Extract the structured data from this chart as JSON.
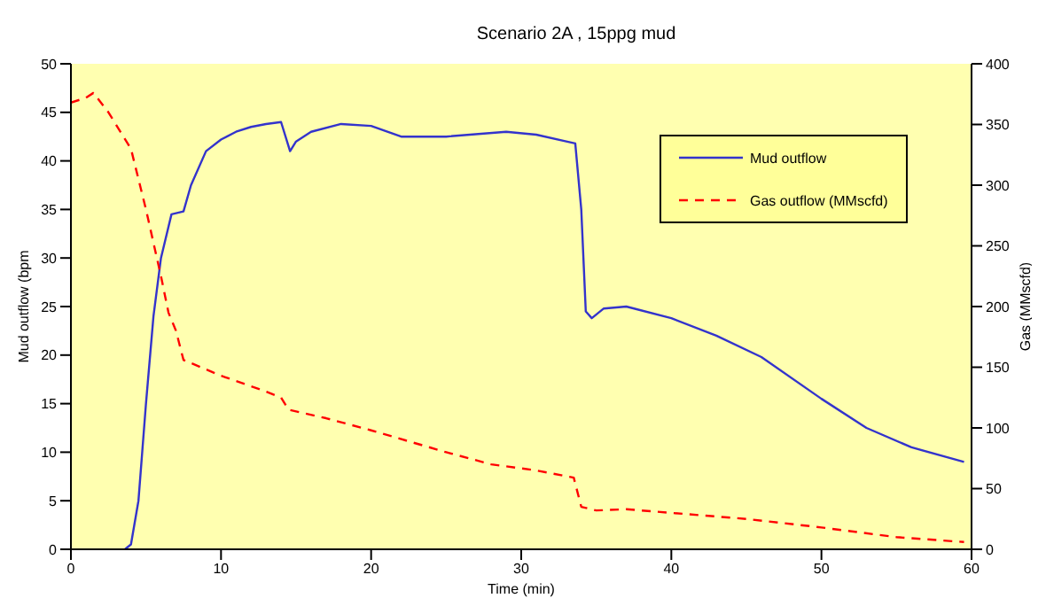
{
  "chart_data": {
    "type": "line",
    "title": "Scenario 2A , 15ppg mud",
    "xlabel": "Time (min)",
    "ylabel": "Mud outflow (bpm",
    "y2label": "Gas (MMscfd)",
    "xlim": [
      0,
      60
    ],
    "xticks": [
      0,
      10,
      20,
      30,
      40,
      50,
      60
    ],
    "ylim": [
      0,
      50
    ],
    "yticks": [
      0,
      5,
      10,
      15,
      20,
      25,
      30,
      35,
      40,
      45,
      50
    ],
    "y2lim": [
      0,
      400
    ],
    "y2ticks": [
      0,
      50,
      100,
      150,
      200,
      250,
      300,
      350,
      400
    ],
    "grid": false,
    "legend": "top right",
    "marker": "none",
    "series": [
      {
        "name": "Mud outflow",
        "color": "#3333cc",
        "line_style": "solid",
        "x": [
          3.6,
          4,
          4.5,
          5,
          5.5,
          6,
          6.7,
          7.5,
          8,
          9,
          10,
          11,
          12,
          13,
          14,
          14.6,
          15,
          16,
          18,
          20,
          22,
          25,
          29,
          31,
          33,
          33.6,
          34,
          34.3,
          34.7,
          35.5,
          37,
          40,
          43,
          46,
          50,
          53,
          56,
          59.5
        ],
        "values": [
          0,
          0.5,
          5,
          15,
          24,
          30,
          34.5,
          34.8,
          37.5,
          41,
          42.2,
          43,
          43.5,
          43.8,
          44,
          41,
          42,
          43,
          43.8,
          43.6,
          42.5,
          42.5,
          43,
          42.7,
          42,
          41.8,
          35,
          24.5,
          23.8,
          24.8,
          25,
          23.8,
          22,
          19.8,
          15.5,
          12.5,
          10.5,
          9
        ]
      },
      {
        "name": "Gas outflow (MMscfd)",
        "color": "#ff0000",
        "axis": "y2",
        "line_style": "dashed",
        "x": [
          0,
          1,
          1.5,
          2.5,
          3.5,
          4,
          5,
          6,
          6.5,
          7,
          7.5,
          10,
          13,
          14,
          14.5,
          17,
          20,
          25,
          28,
          31,
          33.5,
          34,
          35,
          37,
          40,
          45,
          50,
          55,
          59.5
        ],
        "values": [
          368,
          372,
          376,
          360,
          340,
          330,
          280,
          225,
          195,
          180,
          156,
          143,
          130,
          125,
          115,
          108,
          98,
          80,
          70,
          65,
          59,
          35,
          32,
          33,
          30,
          25,
          18,
          10,
          6
        ]
      }
    ]
  }
}
